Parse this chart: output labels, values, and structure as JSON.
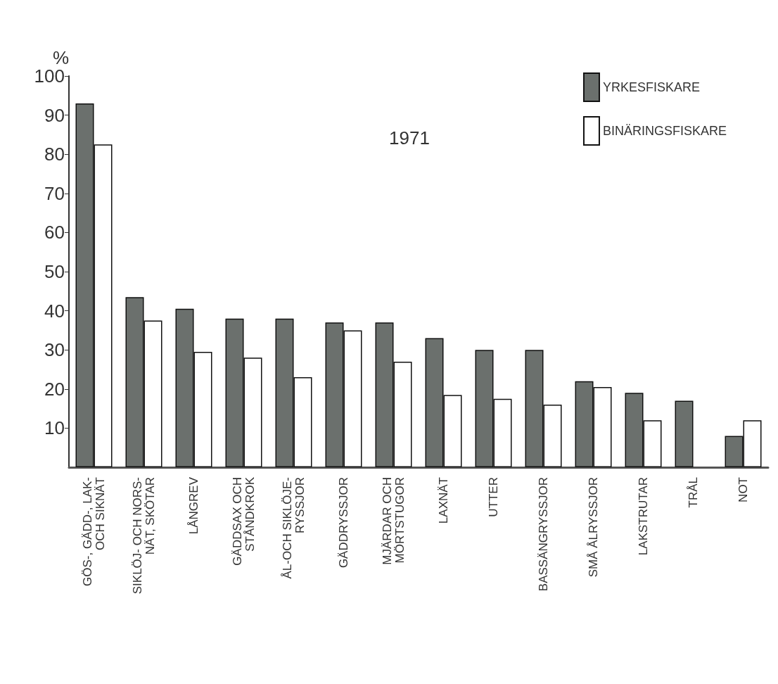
{
  "chart_data": {
    "type": "bar",
    "title": "1971",
    "ylabel": "%",
    "categories": [
      "GÖS-, GÄDD-, LAK-\nOCH SIKNÄT",
      "SIKLÖJ- OCH NORS-\nNÄT, SKÖTAR",
      "LÅNGREV",
      "GÄDDSAX OCH\nSTÅNDKROK",
      "ÅL-OCH SIKLÖJE-\nRYSSJOR",
      "GÄDDRYSSJOR",
      "MJÄRDAR OCH\nMÖRTSTUGOR",
      "LAXNÄT",
      "UTTER",
      "BASSÄNGRYSSJOR",
      "SMÅ ÅLRYSSJOR",
      "LAKSTRUTAR",
      "TRÅL",
      "NOT"
    ],
    "series": [
      {
        "name": "YRKESFISKARE",
        "color": "#6b706d",
        "values": [
          93,
          43.5,
          40.5,
          38,
          38,
          37,
          37,
          33,
          30,
          30,
          22,
          19,
          17,
          8
        ]
      },
      {
        "name": "BINÄRINGSFISKARE",
        "color": "#ffffff",
        "values": [
          82.5,
          37.5,
          29.5,
          28,
          23,
          35,
          27,
          18.5,
          17.5,
          16,
          20.5,
          12,
          null,
          12
        ]
      }
    ],
    "ylim": [
      0,
      100
    ],
    "yticks": [
      10,
      20,
      30,
      40,
      50,
      60,
      70,
      80,
      90,
      100
    ],
    "grid": false,
    "legend": "top right"
  }
}
